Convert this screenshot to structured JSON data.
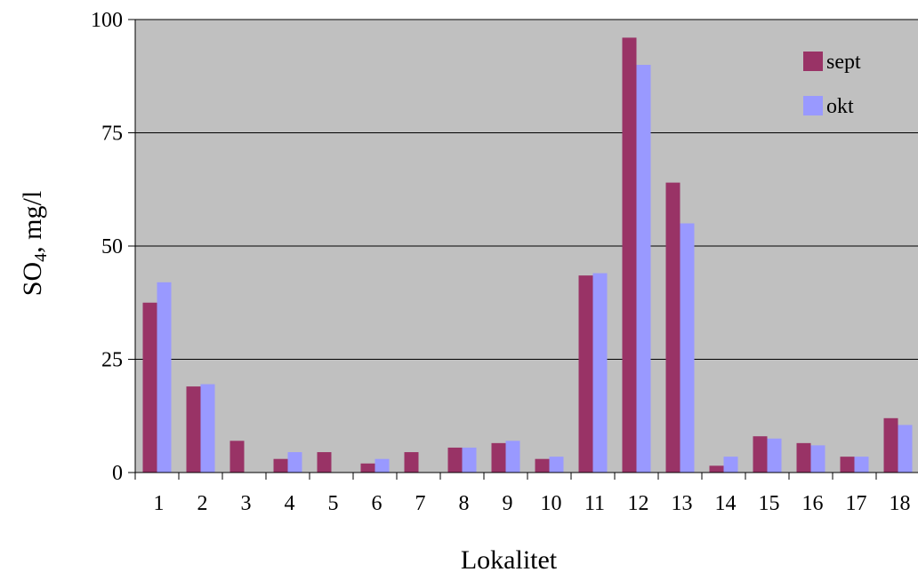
{
  "chart_data": {
    "type": "bar",
    "title": "",
    "xlabel": "Lokalitet",
    "ylabel": "SO4, mg/l",
    "ylabel_main": "SO",
    "ylabel_sub": "4",
    "ylabel_rest": ", mg/l",
    "ylim": [
      0,
      100
    ],
    "yticks": [
      0,
      25,
      50,
      75,
      100
    ],
    "grid": true,
    "legend_position": "top-right",
    "plot_background": "#C0C0C0",
    "categories": [
      "1",
      "2",
      "3",
      "4",
      "5",
      "6",
      "7",
      "8",
      "9",
      "10",
      "11",
      "12",
      "13",
      "14",
      "15",
      "16",
      "17",
      "18"
    ],
    "series": [
      {
        "name": "sept",
        "color": "#993366",
        "values": [
          37.5,
          19,
          7,
          3,
          4.5,
          2,
          4.5,
          5.5,
          6.5,
          3,
          43.5,
          96,
          64,
          1.5,
          8,
          6.5,
          3.5,
          12
        ]
      },
      {
        "name": "okt",
        "color": "#9999FF",
        "values": [
          42,
          19.5,
          null,
          4.5,
          null,
          3,
          null,
          5.5,
          7,
          3.5,
          44,
          90,
          55,
          3.5,
          7.5,
          6,
          3.5,
          10.5
        ]
      }
    ]
  }
}
